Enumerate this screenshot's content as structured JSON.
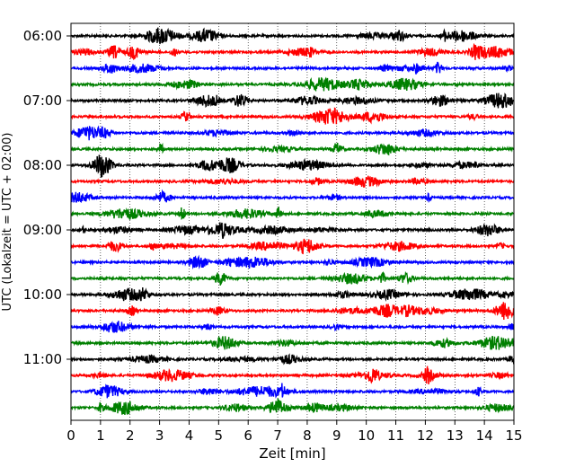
{
  "chart_data": {
    "type": "line",
    "title": "",
    "xlabel": "Zeit  [min]",
    "ylabel": "UTC (Lokalzeit = UTC + 02:00)",
    "xlim": [
      0,
      15
    ],
    "xticks": [
      0,
      1,
      2,
      3,
      4,
      5,
      6,
      7,
      8,
      9,
      10,
      11,
      12,
      13,
      14,
      15
    ],
    "grid": "vertical dotted lines at each minute",
    "row_count": 24,
    "row_interval_minutes": 15,
    "colors": [
      "#000000",
      "#ff0000",
      "#0000ff",
      "#008000"
    ],
    "ytick_labels": [
      "06:00",
      "07:00",
      "08:00",
      "09:00",
      "10:00",
      "11:00"
    ],
    "ytick_rows": [
      0,
      4,
      8,
      12,
      16,
      20
    ]
  }
}
